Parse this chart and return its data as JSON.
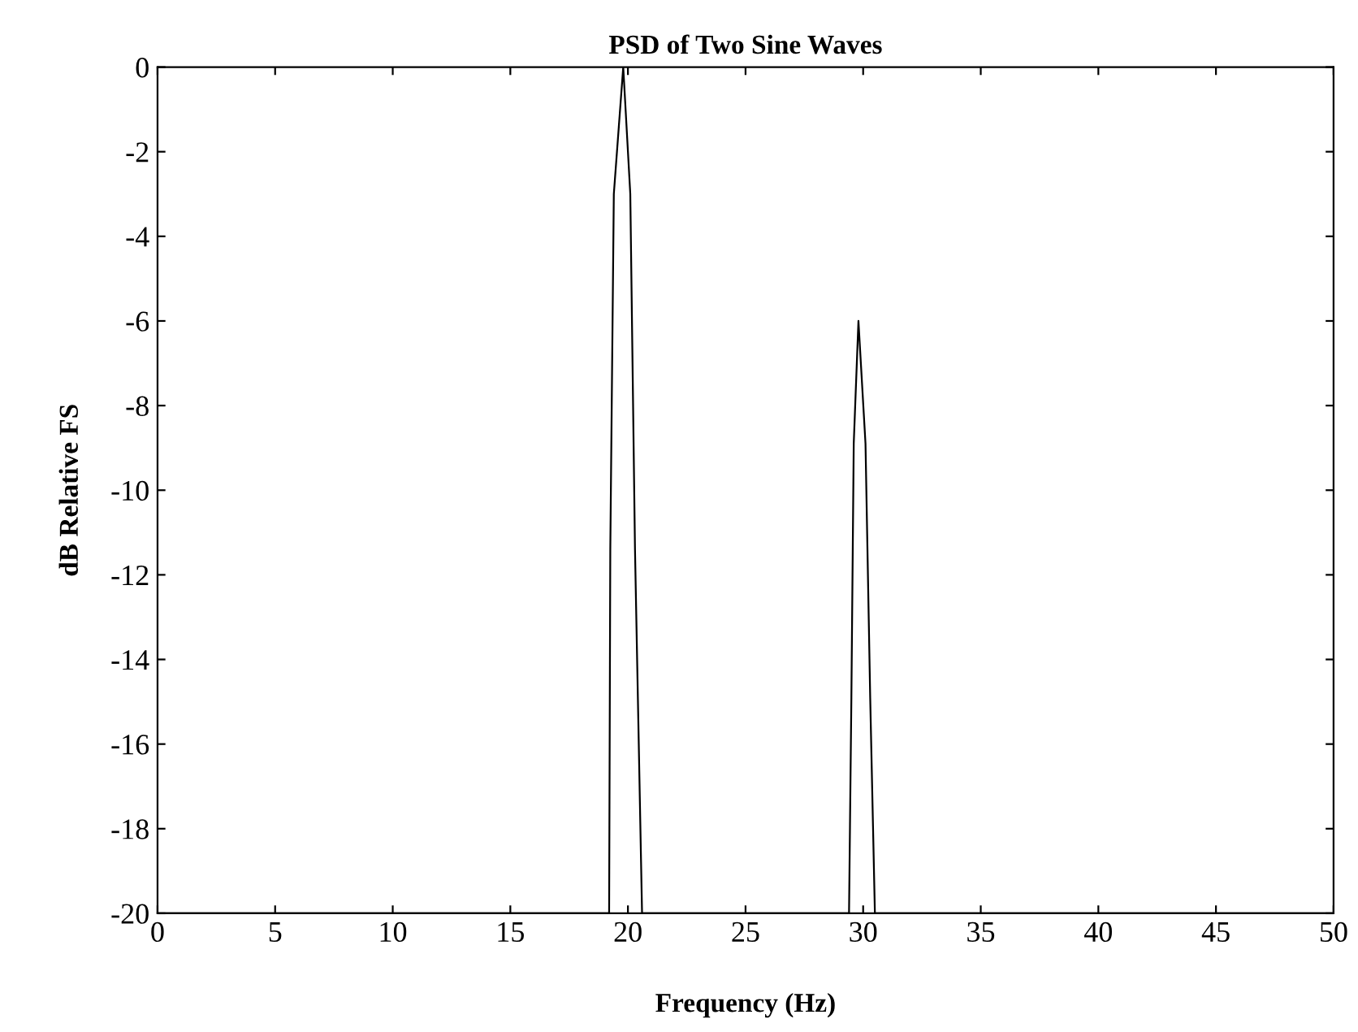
{
  "chart_data": {
    "type": "line",
    "title": "PSD of Two Sine Waves",
    "xlabel": "Frequency (Hz)",
    "ylabel": "dB Relative FS",
    "x": [
      0,
      19.2,
      19.25,
      19.4,
      19.8,
      20.1,
      20.3,
      20.6,
      29.4,
      29.5,
      29.6,
      29.8,
      30.1,
      30.3,
      30.5,
      50
    ],
    "series": [
      {
        "color": "#000000",
        "values": [
          -20,
          -20,
          -11.4,
          -3,
          0,
          -3,
          -11.4,
          -20,
          -20,
          -14.9,
          -8.9,
          -6,
          -8.9,
          -14.9,
          -20,
          -20
        ]
      }
    ],
    "xlim": [
      0,
      50
    ],
    "ylim": [
      -20,
      0
    ],
    "xticks": [
      0,
      5,
      10,
      15,
      20,
      25,
      30,
      35,
      40,
      45,
      50
    ],
    "yticks": [
      -20,
      -18,
      -16,
      -14,
      -12,
      -10,
      -8,
      -6,
      -4,
      -2,
      0
    ],
    "grid": false,
    "legend": false
  }
}
